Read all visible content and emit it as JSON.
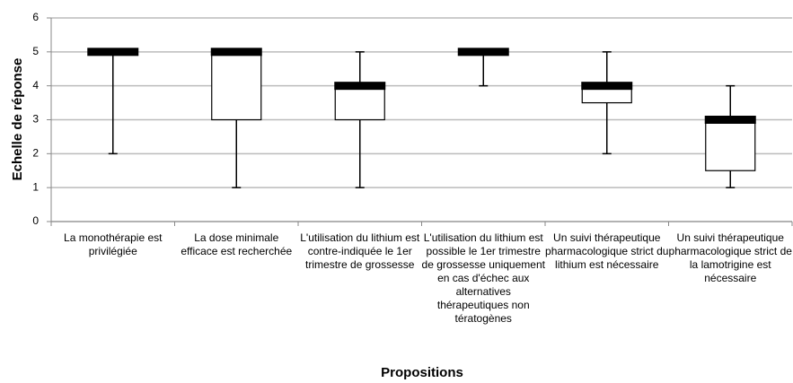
{
  "chart_data": {
    "type": "box",
    "ylabel": "Echelle de réponse",
    "xlabel": "Propositions",
    "categories": [
      "La monothérapie est privilégiée",
      "La dose minimale efficace est recherchée",
      "L'utilisation du lithium est contre-indiquée le 1er trimestre de grossesse",
      "L'utilisation du lithium est possible le 1er trimestre de grossesse uniquement en cas d'échec aux alternatives thérapeutiques non tératogènes",
      "Un suivi thérapeutique pharmacologique strict du lithium est nécessaire",
      "Un suivi thérapeutique pharmacologique strict de la lamotrigine est nécessaire"
    ],
    "boxes": [
      {
        "min": 2,
        "q1": 5,
        "median": 5,
        "q3": 5,
        "max": 5
      },
      {
        "min": 1,
        "q1": 3,
        "median": 5,
        "q3": 5,
        "max": 5
      },
      {
        "min": 1,
        "q1": 3,
        "median": 4,
        "q3": 4,
        "max": 5
      },
      {
        "min": 4,
        "q1": 5,
        "median": 5,
        "q3": 5,
        "max": 5
      },
      {
        "min": 2,
        "q1": 3.5,
        "median": 4,
        "q3": 4,
        "max": 5
      },
      {
        "min": 1,
        "q1": 1.5,
        "median": 3,
        "q3": 3,
        "max": 4
      }
    ],
    "ylim": [
      0,
      6
    ],
    "yticks": [
      0,
      1,
      2,
      3,
      4,
      5,
      6
    ],
    "grid": true,
    "color": "#000000"
  }
}
